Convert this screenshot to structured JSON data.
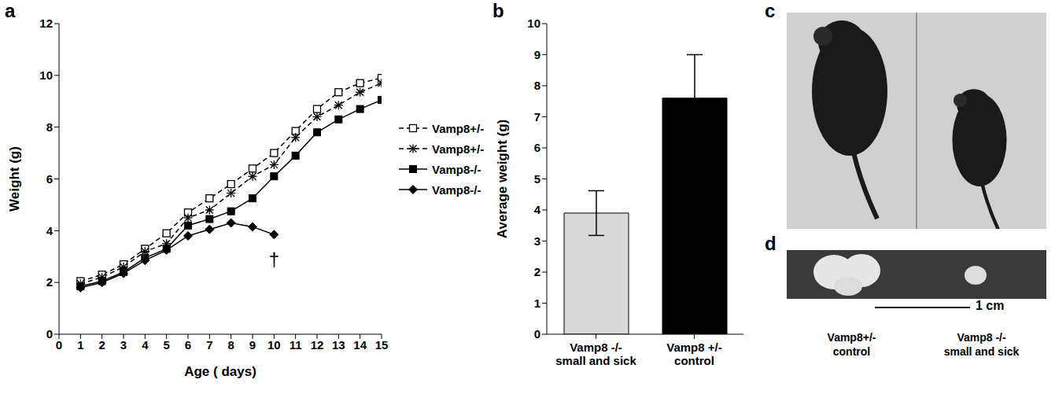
{
  "chart_data": [
    {
      "panel_label": "a",
      "type": "line",
      "x_label": "Age ( days)",
      "y_label": "Weight (g)",
      "x": [
        1,
        2,
        3,
        4,
        5,
        6,
        7,
        8,
        9,
        10,
        11,
        12,
        13,
        14,
        15
      ],
      "xlim": [
        0,
        15
      ],
      "xticks": [
        0,
        1,
        2,
        3,
        4,
        5,
        6,
        7,
        8,
        9,
        10,
        11,
        12,
        13,
        14,
        15
      ],
      "ylim": [
        0,
        12
      ],
      "yticks": [
        0,
        2,
        4,
        6,
        8,
        10,
        12
      ],
      "legend": "right",
      "series": [
        {
          "name": "Vamp8+/-",
          "color": "#000000",
          "marker": "square_open",
          "line_style": "dashed",
          "values": [
            2.05,
            2.3,
            2.7,
            3.3,
            3.9,
            4.7,
            5.25,
            5.8,
            6.4,
            7.0,
            7.85,
            8.7,
            9.35,
            9.7,
            9.9
          ]
        },
        {
          "name": "Vamp8+/-",
          "color": "#000000",
          "marker": "asterisk",
          "line_style": "dashed",
          "values": [
            1.95,
            2.2,
            2.6,
            3.2,
            3.5,
            4.5,
            4.8,
            5.45,
            6.1,
            6.55,
            7.6,
            8.4,
            8.85,
            9.35,
            9.7
          ]
        },
        {
          "name": "Vamp8-/-",
          "color": "#000000",
          "marker": "square",
          "line_style": "solid",
          "values": [
            1.85,
            2.05,
            2.4,
            2.95,
            3.3,
            4.2,
            4.45,
            4.75,
            5.25,
            6.1,
            6.9,
            7.8,
            8.3,
            8.7,
            9.05
          ]
        },
        {
          "name": "Vamp8-/-",
          "color": "#000000",
          "marker": "diamond",
          "line_style": "solid",
          "values": [
            1.8,
            2.0,
            2.35,
            2.85,
            3.25,
            3.8,
            4.05,
            4.3,
            4.15,
            3.85,
            null,
            null,
            null,
            null,
            null
          ]
        }
      ],
      "annotations": [
        {
          "text": "†",
          "x": 10,
          "y": 2.9
        }
      ]
    },
    {
      "panel_label": "b",
      "type": "bar",
      "y_label": "Average weight (g)",
      "categories": [
        "Vamp8 -/- small and sick",
        "Vamp8 +/- control"
      ],
      "values": [
        3.9,
        7.6
      ],
      "errors": [
        0.72,
        1.4
      ],
      "colors": [
        "#d9d9d9",
        "#000000"
      ],
      "ylim": [
        0,
        10
      ],
      "yticks": [
        0,
        1,
        2,
        3,
        4,
        5,
        6,
        7,
        8,
        9,
        10
      ]
    }
  ],
  "photos": [
    {
      "panel_label": "c"
    },
    {
      "panel_label": "d",
      "scale_bar": "1 cm",
      "captions": [
        "Vamp8+/- control",
        "Vamp8 -/- small and sick"
      ]
    }
  ]
}
